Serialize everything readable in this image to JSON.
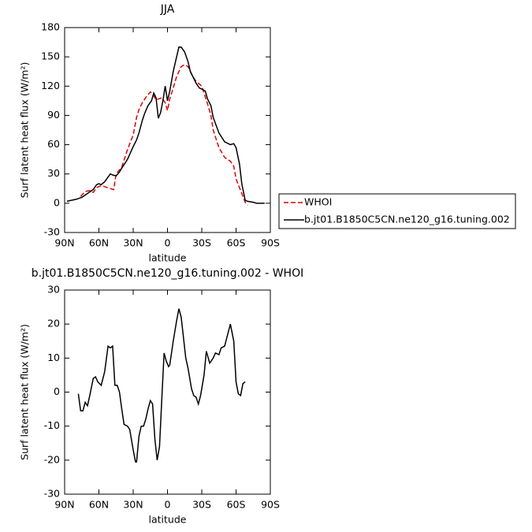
{
  "chart_data": [
    {
      "type": "line",
      "title": "JJA",
      "xlabel": "latitude",
      "ylabel": "Surf latent heat flux (W/m²)",
      "xlim": [
        90,
        -90
      ],
      "xticks": [
        {
          "value": 90,
          "label": "90N"
        },
        {
          "value": 60,
          "label": "60N"
        },
        {
          "value": 30,
          "label": "30N"
        },
        0,
        {
          "value": -30,
          "label": "30S"
        },
        {
          "value": -60,
          "label": "60S"
        },
        {
          "value": -90,
          "label": "90S"
        }
      ],
      "ylim": [
        -30,
        180
      ],
      "yticks": [
        -30,
        0,
        30,
        60,
        90,
        120,
        150,
        180
      ],
      "legend": "right",
      "series": [
        {
          "name": "WHOI",
          "color": "#e00000",
          "style": "dashed",
          "x": [
            76,
            72,
            68,
            65,
            62,
            58,
            55,
            50,
            47,
            45,
            40,
            35,
            30,
            27,
            25,
            22,
            18,
            15,
            12,
            10,
            5,
            2,
            0,
            -2,
            -5,
            -8,
            -12,
            -15,
            -18,
            -22,
            -25,
            -30,
            -35,
            -38,
            -40,
            -45,
            -50,
            -55,
            -58,
            -60,
            -65,
            -68,
            -70
          ],
          "values": [
            7,
            12,
            13,
            11,
            16,
            18,
            17,
            15,
            14,
            30,
            37,
            55,
            70,
            88,
            96,
            103,
            110,
            114,
            110,
            106,
            108,
            103,
            95,
            107,
            118,
            130,
            140,
            142,
            140,
            130,
            125,
            120,
            102,
            90,
            75,
            57,
            47,
            43,
            38,
            25,
            10,
            1,
            -2
          ]
        },
        {
          "name": "b.jt01.B1850C5CN.ne120_g16.tuning.002",
          "color": "#000000",
          "style": "solid",
          "x": [
            88,
            80,
            75,
            70,
            65,
            62,
            60,
            58,
            55,
            50,
            48,
            45,
            42,
            40,
            35,
            30,
            27,
            25,
            22,
            20,
            17,
            14,
            12,
            10,
            8,
            6,
            4,
            2,
            0,
            -2,
            -5,
            -8,
            -10,
            -12,
            -15,
            -18,
            -20,
            -25,
            -28,
            -30,
            -33,
            -35,
            -38,
            -40,
            -45,
            -50,
            -55,
            -58,
            -60,
            -63,
            -65,
            -68,
            -70,
            -75,
            -78,
            -85
          ],
          "values": [
            2,
            4,
            6,
            10,
            14,
            19,
            20,
            19,
            22,
            30,
            29,
            28,
            32,
            36,
            45,
            58,
            65,
            72,
            85,
            92,
            100,
            105,
            113,
            108,
            87,
            93,
            105,
            120,
            105,
            115,
            135,
            150,
            160,
            160,
            155,
            145,
            135,
            123,
            118,
            117,
            115,
            107,
            100,
            88,
            72,
            63,
            60,
            61,
            57,
            40,
            20,
            3,
            2,
            1,
            0,
            0
          ]
        }
      ]
    },
    {
      "type": "line",
      "title": "b.jt01.B1850C5CN.ne120_g16.tuning.002 - WHOI",
      "xlabel": "latitude",
      "ylabel": "Surf latent heat flux (W/m²)",
      "xlim": [
        90,
        -90
      ],
      "xticks": [
        {
          "value": 90,
          "label": "90N"
        },
        {
          "value": 60,
          "label": "60N"
        },
        {
          "value": 30,
          "label": "30N"
        },
        0,
        {
          "value": -30,
          "label": "30S"
        },
        {
          "value": -60,
          "label": "60S"
        },
        {
          "value": -90,
          "label": "90S"
        }
      ],
      "ylim": [
        -30,
        30
      ],
      "yticks": [
        -30,
        -20,
        -10,
        0,
        10,
        20,
        30
      ],
      "series": [
        {
          "color": "#000000",
          "style": "solid",
          "x": [
            78,
            76,
            74,
            72,
            70,
            68,
            65,
            63,
            61,
            58,
            55,
            52,
            50,
            48,
            46,
            44,
            42,
            40,
            38,
            35,
            33,
            30,
            28,
            27,
            25,
            23,
            21,
            19,
            17,
            15,
            13,
            11,
            9,
            7,
            5,
            3,
            1,
            -1,
            -2,
            -5,
            -8,
            -10,
            -12,
            -14,
            -16,
            -18,
            -21,
            -23,
            -25,
            -27,
            -29,
            -32,
            -34,
            -37,
            -40,
            -42,
            -45,
            -47,
            -50,
            -55,
            -58,
            -60,
            -62,
            -64,
            -66,
            -68
          ],
          "values": [
            -0.5,
            -5.5,
            -5.5,
            -3,
            -4,
            -1,
            4,
            4.5,
            3,
            2,
            6,
            13.5,
            13,
            13.5,
            2,
            2,
            0,
            -5,
            -9.5,
            -10,
            -11,
            -17,
            -20.5,
            -20.5,
            -13,
            -10,
            -10,
            -8,
            -5,
            -2.5,
            -3.5,
            -14,
            -20,
            -16,
            -2,
            11.5,
            9,
            7.5,
            8,
            15,
            21,
            24.5,
            22,
            16,
            10,
            7,
            1,
            -1,
            -1.5,
            -3.5,
            -1,
            5,
            12,
            8.5,
            10,
            11.5,
            11,
            13,
            13.5,
            20,
            15,
            3,
            -0.5,
            -1,
            2.5,
            3
          ]
        }
      ]
    }
  ]
}
